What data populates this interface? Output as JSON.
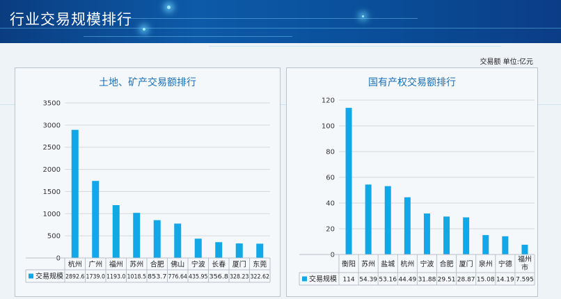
{
  "header": {
    "title": "行业交易规模排行"
  },
  "unit_label": "交易额  单位:亿元",
  "chart_data": [
    {
      "type": "bar",
      "title": "土地、矿产交易额排行",
      "categories": [
        "杭州",
        "广州",
        "福州",
        "苏州",
        "合肥",
        "佛山",
        "宁波",
        "长春",
        "厦门",
        "东莞"
      ],
      "series": [
        {
          "name": "交易规模",
          "values": [
            2892.6,
            1739.0,
            1193.0,
            1018.5,
            853.7,
            776.64,
            435.95,
            356.8,
            328.23,
            322.62
          ]
        }
      ],
      "value_labels": [
        "2892.6",
        "1739.0",
        "1193.0",
        "1018.5",
        "853.7",
        "776.64",
        "435.95",
        "356.8",
        "328.23",
        "322.62"
      ],
      "ylim": [
        0,
        3500
      ],
      "yticks": [
        "0",
        "500",
        "1000",
        "1500",
        "2000",
        "2500",
        "3000",
        "3500"
      ],
      "grid": true,
      "bar_color": "#12a8e8"
    },
    {
      "type": "bar",
      "title": "国有产权交易额排行",
      "categories": [
        "衡阳",
        "苏州",
        "盐城",
        "杭州",
        "宁波",
        "合肥",
        "厦门",
        "泉州",
        "宁德",
        "福州市"
      ],
      "series": [
        {
          "name": "交易规模",
          "values": [
            114,
            54.39,
            53.16,
            44.49,
            31.88,
            29.51,
            28.87,
            15.08,
            14.19,
            7.595
          ]
        }
      ],
      "value_labels": [
        "114",
        "54.39",
        "53.16",
        "44.49",
        "31.88",
        "29.51",
        "28.87",
        "15.08",
        "14.19",
        "7.595"
      ],
      "ylim": [
        0,
        120
      ],
      "yticks": [
        "0",
        "20",
        "40",
        "60",
        "80",
        "100",
        "120"
      ],
      "grid": true,
      "bar_color": "#12a8e8"
    }
  ]
}
